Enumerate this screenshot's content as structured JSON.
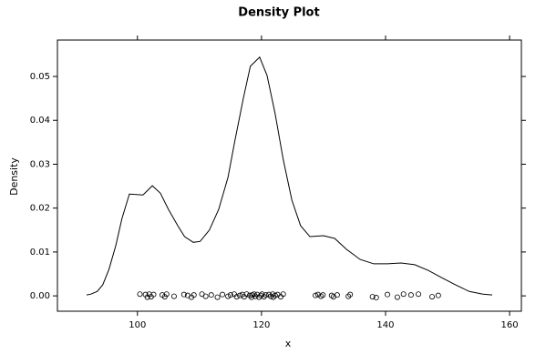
{
  "chart_data": {
    "type": "density",
    "title": "Density Plot",
    "xlabel": "x",
    "ylabel": "Density",
    "xlim": [
      87.1,
      161.9
    ],
    "ylim": [
      -0.0035,
      0.0583
    ],
    "xticks": [
      100,
      120,
      140,
      160
    ],
    "yticks": [
      {
        "value": 0,
        "label": "0.00"
      },
      {
        "value": 0.01,
        "label": "0.01"
      },
      {
        "value": 0.02,
        "label": "0.02"
      },
      {
        "value": 0.03,
        "label": "0.03"
      },
      {
        "value": 0.04,
        "label": "0.04"
      },
      {
        "value": 0.05,
        "label": "0.05"
      }
    ],
    "series": [
      {
        "color": "#000000",
        "x": [
          91.8,
          92.5,
          93.5,
          94.4,
          95.4,
          96.5,
          97.5,
          98.7,
          100.9,
          102.4,
          103.7,
          105.0,
          106.5,
          107.6,
          109.0,
          110.1,
          111.6,
          113.1,
          114.6,
          115.7,
          117.1,
          118.2,
          119.7,
          120.9,
          122.2,
          123.5,
          124.9,
          126.3,
          127.8,
          130.0,
          131.8,
          133.7,
          135.9,
          138.1,
          140.3,
          142.5,
          144.7,
          146.9,
          149.1,
          151.3,
          153.5,
          155.7,
          157.2
        ],
        "values": [
          0.0002,
          0.0004,
          0.001,
          0.0025,
          0.006,
          0.0114,
          0.0176,
          0.0232,
          0.023,
          0.0251,
          0.0234,
          0.0197,
          0.016,
          0.0135,
          0.0122,
          0.0124,
          0.015,
          0.0197,
          0.027,
          0.0353,
          0.0452,
          0.0523,
          0.0544,
          0.0502,
          0.0415,
          0.0311,
          0.0218,
          0.016,
          0.0135,
          0.0137,
          0.0131,
          0.0106,
          0.0083,
          0.0073,
          0.0073,
          0.0075,
          0.0071,
          0.0058,
          0.0041,
          0.0025,
          0.001,
          0.0004,
          0.0002
        ]
      }
    ],
    "rug": {
      "color": "#000000",
      "x": [
        100.4,
        101.3,
        101.6,
        101.9,
        102.2,
        102.6,
        104.0,
        104.4,
        104.7,
        105.9,
        107.5,
        108.1,
        108.7,
        109.1,
        110.4,
        111.0,
        111.9,
        112.9,
        113.7,
        114.6,
        115.0,
        115.6,
        116.0,
        116.5,
        116.9,
        117.2,
        117.6,
        118.1,
        118.4,
        118.5,
        118.8,
        119.0,
        119.3,
        119.6,
        119.9,
        120.1,
        120.4,
        120.7,
        121.2,
        121.5,
        121.8,
        121.9,
        122.2,
        122.6,
        123.1,
        123.5,
        128.7,
        129.1,
        129.6,
        129.9,
        131.3,
        131.6,
        132.2,
        134.0,
        134.3,
        137.9,
        138.5,
        140.3,
        141.9,
        142.9,
        144.1,
        145.3,
        147.5,
        148.5
      ],
      "values": [
        0.0004,
        0.0003,
        -0.0003,
        0.0004,
        -0.0002,
        0.0003,
        0.0002,
        -0.0002,
        0.0004,
        -0.0001,
        0.0003,
        0.0001,
        -0.0003,
        0.0002,
        0.0004,
        -0.0001,
        0.0002,
        -0.0003,
        0.0003,
        -0.0001,
        0.0002,
        0.0004,
        -0.0002,
        0.0001,
        0.0003,
        -0.0002,
        0.0004,
        0.0001,
        -0.0003,
        0.0002,
        0.0004,
        -0.0001,
        0.0003,
        -0.0003,
        0.0001,
        0.0004,
        -0.0002,
        0.0002,
        0.0003,
        -0.0001,
        0.0004,
        -0.0003,
        0.0001,
        0.0003,
        -0.0002,
        0.0004,
        0.0001,
        0.0003,
        -0.0001,
        0.0002,
        0.0001,
        -0.0002,
        0.0002,
        -0.0001,
        0.0003,
        -0.0002,
        -0.0004,
        0.0003,
        -0.0003,
        0.0004,
        0.0002,
        0.0004,
        -0.0002,
        0.0001
      ]
    }
  }
}
